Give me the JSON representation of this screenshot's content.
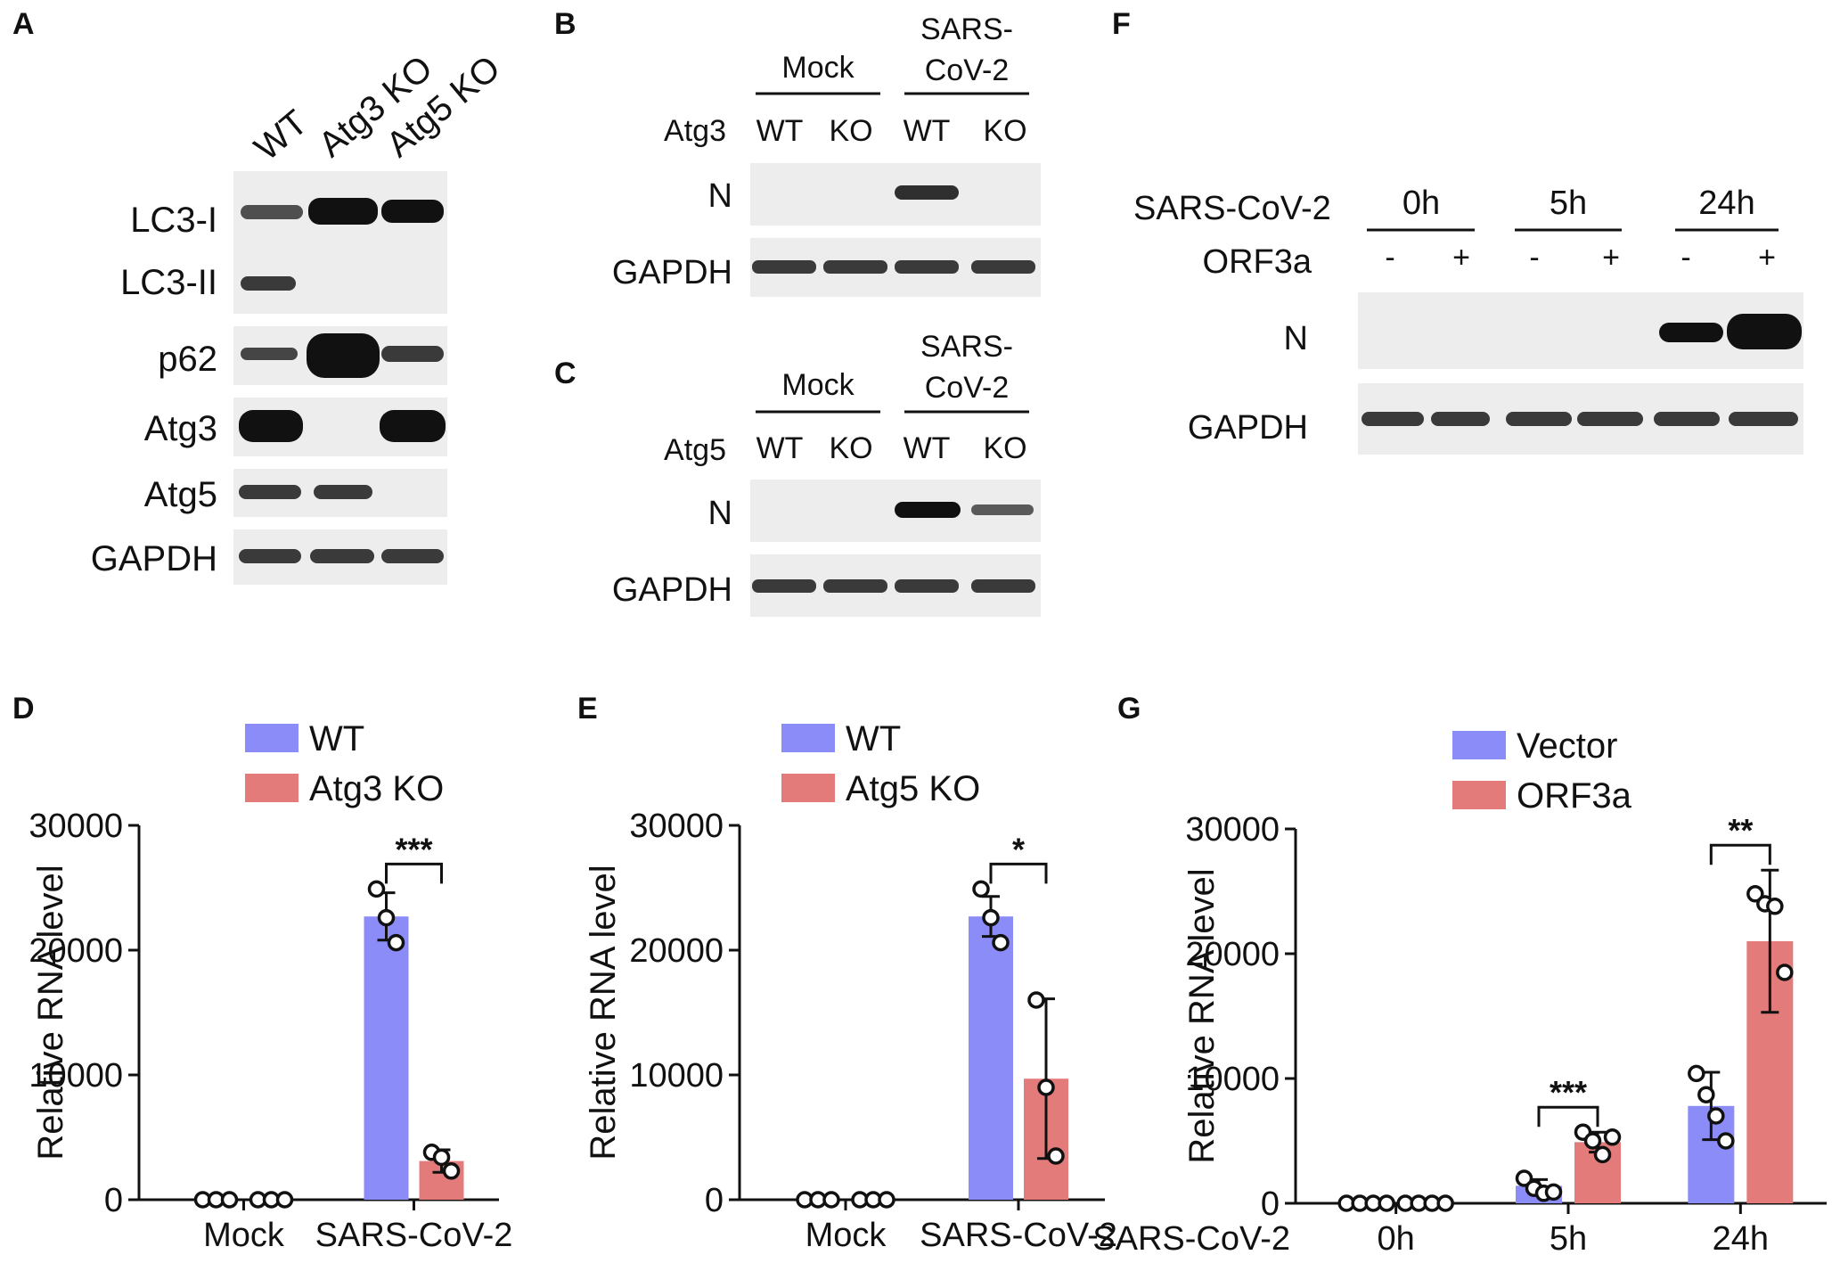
{
  "colors": {
    "wt": "#8C8CF8",
    "ko": "#E47B7B",
    "ink": "#111111",
    "blot_bg": "#EDEDED",
    "band": "#1A1A1A"
  },
  "panels": {
    "A": {
      "letter": "A",
      "lanes": [
        "WT",
        "Atg3 KO",
        "Atg5 KO"
      ],
      "blots": [
        "LC3-I",
        "LC3-II",
        "p62",
        "Atg3",
        "Atg5",
        "GAPDH"
      ]
    },
    "B": {
      "letter": "B",
      "groups": [
        "Mock",
        "SARS-\nCoV-2"
      ],
      "group_line1": [
        "Mock",
        "SARS-"
      ],
      "group_line2": [
        "",
        "CoV-2"
      ],
      "row_label": "Atg3",
      "lanes": [
        "WT",
        "KO",
        "WT",
        "KO"
      ],
      "blots": [
        "N",
        "GAPDH"
      ]
    },
    "C": {
      "letter": "C",
      "group_line1": [
        "Mock",
        "SARS-"
      ],
      "group_line2": [
        "",
        "CoV-2"
      ],
      "row_label": "Atg5",
      "lanes": [
        "WT",
        "KO",
        "WT",
        "KO"
      ],
      "blots": [
        "N",
        "GAPDH"
      ]
    },
    "F": {
      "letter": "F",
      "row1_label": "SARS-CoV-2",
      "times": [
        "0h",
        "5h",
        "24h"
      ],
      "row2_label": "ORF3a",
      "signs": [
        "-",
        "+",
        "-",
        "+",
        "-",
        "+"
      ],
      "blots": [
        "N",
        "GAPDH"
      ]
    },
    "D": {
      "letter": "D"
    },
    "E": {
      "letter": "E"
    },
    "G": {
      "letter": "G"
    }
  },
  "chart_data": [
    {
      "panel": "D",
      "type": "bar",
      "ylabel": "Relative RNA level",
      "ylim": [
        0,
        30000
      ],
      "yticks": [
        0,
        10000,
        20000,
        30000
      ],
      "categories": [
        "Mock",
        "SARS-CoV-2"
      ],
      "series": [
        {
          "name": "WT",
          "values": [
            0,
            22700
          ],
          "sd": [
            0,
            1900
          ],
          "points": [
            [
              0,
              0,
              0
            ],
            [
              24900,
              22600,
              20600
            ]
          ]
        },
        {
          "name": "Atg3 KO",
          "values": [
            0,
            3100
          ],
          "sd": [
            0,
            900
          ],
          "points": [
            [
              0,
              0,
              0
            ],
            [
              3800,
              3400,
              2300
            ]
          ]
        }
      ],
      "significance": [
        {
          "category": "SARS-CoV-2",
          "label": "***"
        }
      ]
    },
    {
      "panel": "E",
      "type": "bar",
      "ylabel": "Relative RNA level",
      "ylim": [
        0,
        30000
      ],
      "yticks": [
        0,
        10000,
        20000,
        30000
      ],
      "categories": [
        "Mock",
        "SARS-CoV-2"
      ],
      "series": [
        {
          "name": "WT",
          "values": [
            0,
            22700
          ],
          "sd": [
            0,
            1600
          ],
          "points": [
            [
              0,
              0,
              0
            ],
            [
              24900,
              22600,
              20600
            ]
          ]
        },
        {
          "name": "Atg5 KO",
          "values": [
            0,
            9700
          ],
          "sd": [
            0,
            6400
          ],
          "points": [
            [
              0,
              0,
              0
            ],
            [
              16000,
              9000,
              3500
            ]
          ]
        }
      ],
      "significance": [
        {
          "category": "SARS-CoV-2",
          "label": "*"
        }
      ]
    },
    {
      "panel": "G",
      "type": "bar",
      "ylabel": "Relative RNA level",
      "xlabel": "SARS-CoV-2",
      "ylim": [
        0,
        30000
      ],
      "yticks": [
        0,
        10000,
        20000,
        30000
      ],
      "categories": [
        "0h",
        "5h",
        "24h"
      ],
      "series": [
        {
          "name": "Vector",
          "values": [
            0,
            1400,
            7800
          ],
          "sd": [
            0,
            500,
            2700
          ],
          "points": [
            [
              0,
              0,
              0,
              0
            ],
            [
              2000,
              1200,
              800,
              900
            ],
            [
              10400,
              8700,
              7000,
              5000
            ]
          ]
        },
        {
          "name": "ORF3a",
          "values": [
            0,
            4900,
            21000
          ],
          "sd": [
            0,
            800,
            5700
          ],
          "points": [
            [
              0,
              0,
              0,
              0
            ],
            [
              5700,
              5000,
              3900,
              5300
            ],
            [
              24800,
              24000,
              23800,
              18500
            ]
          ]
        }
      ],
      "significance": [
        {
          "category": "5h",
          "label": "***"
        },
        {
          "category": "24h",
          "label": "**"
        }
      ]
    }
  ]
}
